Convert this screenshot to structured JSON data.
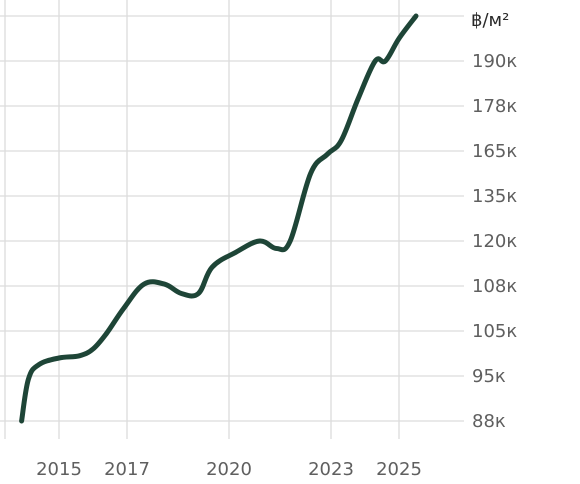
{
  "chart_data": {
    "type": "line",
    "unit_label": "฿/м²",
    "colors": {
      "line": "#1e4537",
      "grid": "#dcdcdc",
      "text": "#5f5f5f"
    },
    "grid": true,
    "x_ticks": [
      2015,
      2017,
      2020,
      2023,
      2025
    ],
    "y_ticks": [
      "88к",
      "95к",
      "105к",
      "108к",
      "120к",
      "135к",
      "165к",
      "178к",
      "190к"
    ],
    "series": [
      {
        "points": [
          {
            "x": 2013.9,
            "y": "88к"
          },
          {
            "x": 2014.1,
            "y": "94.5к"
          },
          {
            "x": 2014.4,
            "y": "97.5к"
          },
          {
            "x": 2015.0,
            "y": "99к"
          },
          {
            "x": 2015.6,
            "y": "99.5к"
          },
          {
            "x": 2016.0,
            "y": "101к"
          },
          {
            "x": 2016.4,
            "y": "104.5к"
          },
          {
            "x": 2016.9,
            "y": "106.5к"
          },
          {
            "x": 2017.5,
            "y": "108.5к"
          },
          {
            "x": 2018.1,
            "y": "108.5к"
          },
          {
            "x": 2018.6,
            "y": "107.5к"
          },
          {
            "x": 2019.1,
            "y": "107.5к"
          },
          {
            "x": 2019.5,
            "y": "113к"
          },
          {
            "x": 2020.2,
            "y": "117к"
          },
          {
            "x": 2020.9,
            "y": "120к"
          },
          {
            "x": 2021.4,
            "y": "118к"
          },
          {
            "x": 2021.8,
            "y": "120к"
          },
          {
            "x": 2022.4,
            "y": "150к"
          },
          {
            "x": 2022.9,
            "y": "163к"
          },
          {
            "x": 2023.3,
            "y": "168к"
          },
          {
            "x": 2023.8,
            "y": "180к"
          },
          {
            "x": 2024.3,
            "y": "190к"
          },
          {
            "x": 2024.6,
            "y": "190к"
          },
          {
            "x": 2025.0,
            "y": "196к"
          },
          {
            "x": 2025.5,
            "y": "202к"
          }
        ]
      }
    ]
  }
}
